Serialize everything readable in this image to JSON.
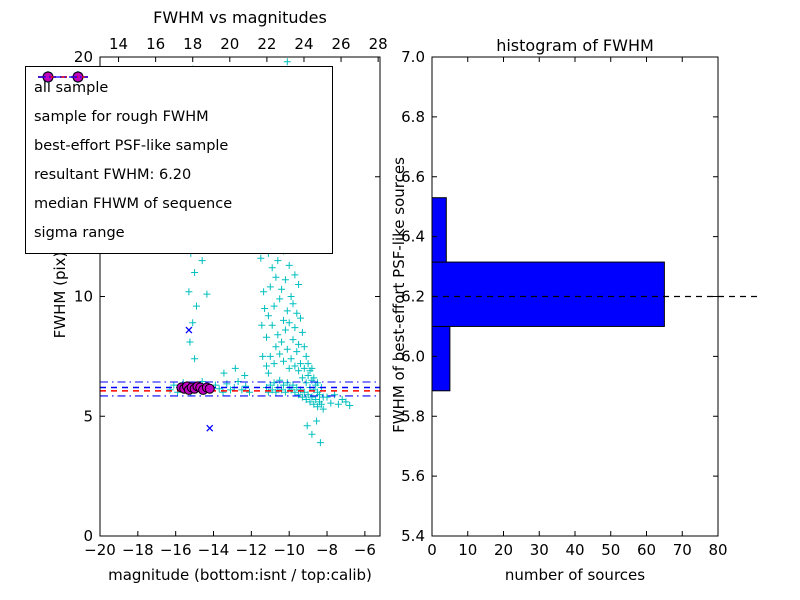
{
  "accent_colors": {
    "cyan": "#00bfbf",
    "blue": "#0000ff",
    "magenta": "#bf00bf",
    "red": "#ff0000",
    "black": "#000000",
    "bar_blue": "#0000ff"
  },
  "chart_data": [
    {
      "type": "scatter",
      "title": "FWHM vs magnitudes",
      "xlabel": "magnitude (bottom:isnt / top:calib)",
      "ylabel": "FWHM (pix)",
      "xlim_bottom": [
        -20,
        -5.2
      ],
      "xlim_top": [
        13.0,
        28.1
      ],
      "ylim": [
        0,
        20
      ],
      "xticks_bottom": {
        "values": [
          -20,
          -18,
          -16,
          -14,
          -12,
          -10,
          -8,
          -6
        ],
        "labels": [
          "−20",
          "−18",
          "−16",
          "−14",
          "−12",
          "−10",
          "−8",
          "−6"
        ]
      },
      "xticks_top": {
        "values": [
          14,
          16,
          18,
          20,
          22,
          24,
          26,
          28
        ],
        "labels": [
          "14",
          "16",
          "18",
          "20",
          "22",
          "24",
          "26",
          "28"
        ]
      },
      "yticks": {
        "values": [
          0,
          5,
          10,
          15,
          20
        ],
        "labels": [
          "0",
          "5",
          "10",
          "15",
          "20"
        ]
      },
      "legend": [
        {
          "label": "all sample",
          "marker": "plus",
          "color": "#00bfbf"
        },
        {
          "label": "sample for rough FWHM",
          "marker": "x",
          "color": "#0000ff"
        },
        {
          "label": "best-effort PSF-like sample",
          "marker": "circle",
          "color": "#bf00bf"
        },
        {
          "label": "resultant FWHM: 6.20",
          "line": "dashed",
          "color": "#0000ff"
        },
        {
          "label": "median FHWM of sequence",
          "line": "dashed",
          "color": "#ff0000"
        },
        {
          "label": "sigma range",
          "line": "dashdot",
          "color": "#0000ff"
        }
      ],
      "lines": [
        {
          "name": "resultant FWHM",
          "y": 6.2,
          "style": "dashed",
          "color": "#0000ff"
        },
        {
          "name": "median FWHM of sequence",
          "y": 6.06,
          "style": "dashed",
          "color": "#ff0000"
        },
        {
          "name": "sigma range upper",
          "y": 6.43,
          "style": "dashdot",
          "color": "#0000ff"
        },
        {
          "name": "sigma range lower",
          "y": 5.85,
          "style": "dashdot",
          "color": "#0000ff"
        }
      ],
      "series": [
        {
          "name": "all sample",
          "marker": "plus",
          "color": "#00bfbf",
          "points": [
            [
              -16.3,
              6.1
            ],
            [
              -16.1,
              6.3
            ],
            [
              -15.9,
              6.0
            ],
            [
              -15.8,
              6.2
            ],
            [
              -15.6,
              6.4
            ],
            [
              -15.5,
              6.1
            ],
            [
              -15.35,
              6.25
            ],
            [
              -15.2,
              6.0
            ],
            [
              -15.05,
              6.3
            ],
            [
              -14.9,
              6.1
            ],
            [
              -14.75,
              6.2
            ],
            [
              -14.6,
              6.45
            ],
            [
              -14.45,
              6.05
            ],
            [
              -14.3,
              6.2
            ],
            [
              -14.1,
              6.1
            ],
            [
              -13.9,
              6.3
            ],
            [
              -13.7,
              6.15
            ],
            [
              -13.5,
              6.0
            ],
            [
              -13.3,
              6.35
            ],
            [
              -13.1,
              6.1
            ],
            [
              -12.9,
              6.2
            ],
            [
              -12.7,
              6.45
            ],
            [
              -12.5,
              6.1
            ],
            [
              -12.3,
              6.25
            ],
            [
              -12.1,
              6.0
            ],
            [
              -13.45,
              6.8
            ],
            [
              -12.85,
              7.0
            ],
            [
              -12.35,
              6.7
            ],
            [
              -15.1,
              19.5
            ],
            [
              -15.3,
              18.2
            ],
            [
              -14.95,
              17.0
            ],
            [
              -15.2,
              16.1
            ],
            [
              -15.0,
              15.3
            ],
            [
              -15.4,
              14.2
            ],
            [
              -15.1,
              13.1
            ],
            [
              -14.85,
              12.4
            ],
            [
              -15.2,
              11.8
            ],
            [
              -15.0,
              11.0
            ],
            [
              -15.3,
              10.2
            ],
            [
              -14.9,
              9.6
            ],
            [
              -15.1,
              8.9
            ],
            [
              -15.25,
              8.1
            ],
            [
              -15.0,
              7.4
            ],
            [
              -14.45,
              12.9
            ],
            [
              -14.6,
              11.5
            ],
            [
              -14.35,
              10.1
            ],
            [
              -11.4,
              7.5
            ],
            [
              -11.45,
              8.8
            ],
            [
              -11.35,
              10.2
            ],
            [
              -11.5,
              11.6
            ],
            [
              -11.3,
              9.5
            ],
            [
              -11.2,
              6.2
            ],
            [
              -11.2,
              7.1
            ],
            [
              -11.2,
              8.3
            ],
            [
              -11.1,
              6.0
            ],
            [
              -11.1,
              6.8
            ],
            [
              -11.1,
              9.2
            ],
            [
              -11.1,
              11.8
            ],
            [
              -11.0,
              6.3
            ],
            [
              -11.0,
              7.5
            ],
            [
              -11.0,
              10.4
            ],
            [
              -11.0,
              12.6
            ],
            [
              -10.9,
              6.1
            ],
            [
              -10.9,
              8.8
            ],
            [
              -10.9,
              11.2
            ],
            [
              -10.8,
              6.4
            ],
            [
              -10.8,
              7.2
            ],
            [
              -10.8,
              9.6
            ],
            [
              -10.8,
              12.1
            ],
            [
              -10.7,
              6.0
            ],
            [
              -10.7,
              7.9
            ],
            [
              -10.7,
              10.8
            ],
            [
              -10.6,
              6.2
            ],
            [
              -10.6,
              8.4
            ],
            [
              -10.6,
              11.5
            ],
            [
              -10.6,
              13.0
            ],
            [
              -10.5,
              6.5
            ],
            [
              -10.5,
              7.6
            ],
            [
              -10.5,
              9.9
            ],
            [
              -10.5,
              12.4
            ],
            [
              -10.4,
              6.1
            ],
            [
              -10.4,
              8.1
            ],
            [
              -10.4,
              10.3
            ],
            [
              -10.3,
              6.3
            ],
            [
              -10.3,
              7.3
            ],
            [
              -10.3,
              9.0
            ],
            [
              -10.3,
              11.9
            ],
            [
              -10.2,
              6.0
            ],
            [
              -10.2,
              8.6
            ],
            [
              -10.2,
              10.7
            ],
            [
              -10.2,
              12.8
            ],
            [
              -10.1,
              6.4
            ],
            [
              -10.1,
              7.8
            ],
            [
              -10.1,
              9.4
            ],
            [
              -10.0,
              6.2
            ],
            [
              -10.0,
              7.0
            ],
            [
              -10.0,
              8.9
            ],
            [
              -10.0,
              11.3
            ],
            [
              -9.9,
              6.1
            ],
            [
              -9.9,
              7.4
            ],
            [
              -9.9,
              10.0
            ],
            [
              -9.9,
              12.2
            ],
            [
              -9.8,
              6.3
            ],
            [
              -9.8,
              8.2
            ],
            [
              -9.8,
              9.7
            ],
            [
              -9.7,
              6.0
            ],
            [
              -9.7,
              7.1
            ],
            [
              -9.7,
              8.7
            ],
            [
              -9.7,
              10.9
            ],
            [
              -9.6,
              6.2
            ],
            [
              -9.6,
              7.7
            ],
            [
              -9.6,
              9.3
            ],
            [
              -9.5,
              5.9
            ],
            [
              -9.5,
              6.9
            ],
            [
              -9.5,
              8.0
            ],
            [
              -9.5,
              10.5
            ],
            [
              -9.4,
              6.1
            ],
            [
              -9.4,
              7.2
            ],
            [
              -9.4,
              9.1
            ],
            [
              -9.3,
              5.8
            ],
            [
              -9.3,
              6.6
            ],
            [
              -9.3,
              8.5
            ],
            [
              -9.2,
              6.0
            ],
            [
              -9.2,
              7.0
            ],
            [
              -9.2,
              7.9
            ],
            [
              -9.1,
              5.7
            ],
            [
              -9.1,
              6.4
            ],
            [
              -9.1,
              7.5
            ],
            [
              -9.0,
              5.9
            ],
            [
              -9.0,
              6.7
            ],
            [
              -9.0,
              7.2
            ],
            [
              -8.9,
              5.6
            ],
            [
              -8.9,
              6.2
            ],
            [
              -8.9,
              6.9
            ],
            [
              -8.8,
              5.8
            ],
            [
              -8.8,
              6.5
            ],
            [
              -8.8,
              7.0
            ],
            [
              -8.7,
              5.5
            ],
            [
              -8.7,
              6.1
            ],
            [
              -8.7,
              6.6
            ],
            [
              -8.6,
              5.7
            ],
            [
              -8.6,
              6.3
            ],
            [
              -8.5,
              5.4
            ],
            [
              -8.5,
              6.0
            ],
            [
              -8.5,
              6.4
            ],
            [
              -8.4,
              5.6
            ],
            [
              -8.4,
              5.9
            ],
            [
              -8.3,
              5.5
            ],
            [
              -8.3,
              6.2
            ],
            [
              -8.2,
              5.3
            ],
            [
              -8.2,
              5.8
            ],
            [
              -10.1,
              19.8
            ],
            [
              -9.95,
              18.7
            ],
            [
              -10.2,
              17.6
            ],
            [
              -9.85,
              16.9
            ],
            [
              -10.05,
              16.0
            ],
            [
              -10.15,
              15.1
            ],
            [
              -9.9,
              14.3
            ],
            [
              -10.0,
              13.6
            ],
            [
              -9.6,
              15.6
            ],
            [
              -9.5,
              14.1
            ],
            [
              -9.7,
              13.0
            ],
            [
              -9.4,
              12.5
            ],
            [
              -9.3,
              13.8
            ],
            [
              -9.2,
              12.0
            ],
            [
              -9.05,
              4.6
            ],
            [
              -8.8,
              4.25
            ],
            [
              -8.55,
              4.8
            ],
            [
              -8.35,
              3.9
            ],
            [
              -8.0,
              5.8
            ],
            [
              -7.8,
              5.55
            ],
            [
              -7.6,
              5.9
            ],
            [
              -7.4,
              5.5
            ],
            [
              -7.2,
              5.7
            ],
            [
              -7.0,
              5.6
            ],
            [
              -6.8,
              5.45
            ]
          ]
        },
        {
          "name": "sample for rough FWHM",
          "marker": "x",
          "color": "#0000ff",
          "points": [
            [
              -15.3,
              8.6
            ],
            [
              -14.2,
              4.5
            ],
            [
              -15.6,
              6.2
            ],
            [
              -15.1,
              6.15
            ],
            [
              -14.7,
              6.25
            ],
            [
              -14.4,
              6.1
            ]
          ]
        },
        {
          "name": "best-effort PSF-like sample",
          "marker": "circle",
          "color": "#bf00bf",
          "edge": "#000000",
          "points": [
            [
              -15.7,
              6.2
            ],
            [
              -15.55,
              6.15
            ],
            [
              -15.4,
              6.25
            ],
            [
              -15.3,
              6.1
            ],
            [
              -15.15,
              6.2
            ],
            [
              -15.0,
              6.15
            ],
            [
              -14.85,
              6.25
            ],
            [
              -14.7,
              6.2
            ],
            [
              -14.55,
              6.1
            ],
            [
              -14.35,
              6.2
            ],
            [
              -14.2,
              6.15
            ]
          ]
        }
      ]
    },
    {
      "type": "bar-horizontal",
      "title": "histogram of FWHM",
      "xlabel": "number of sources",
      "ylabel": "FWHM of best-effort PSF-like sources",
      "xlim": [
        0,
        80
      ],
      "ylim": [
        5.4,
        7.0
      ],
      "xticks": {
        "values": [
          0,
          10,
          20,
          30,
          40,
          50,
          60,
          70,
          80
        ],
        "labels": [
          "0",
          "10",
          "20",
          "30",
          "40",
          "50",
          "60",
          "70",
          "80"
        ]
      },
      "yticks": {
        "values": [
          5.4,
          5.6,
          5.8,
          6.0,
          6.2,
          6.4,
          6.6,
          6.8,
          7.0
        ],
        "labels": [
          "5.4",
          "5.6",
          "5.8",
          "6.0",
          "6.2",
          "6.4",
          "6.6",
          "6.8",
          "7.0"
        ]
      },
      "bars": [
        {
          "fwhm_from": 5.885,
          "fwhm_to": 6.1,
          "count": 5
        },
        {
          "fwhm_from": 6.1,
          "fwhm_to": 6.315,
          "count": 65
        },
        {
          "fwhm_from": 6.315,
          "fwhm_to": 6.53,
          "count": 4
        }
      ],
      "bar_color": "#0000ff",
      "dashed_line": {
        "y": 6.2,
        "color": "#000000",
        "style": "dashed"
      }
    }
  ]
}
